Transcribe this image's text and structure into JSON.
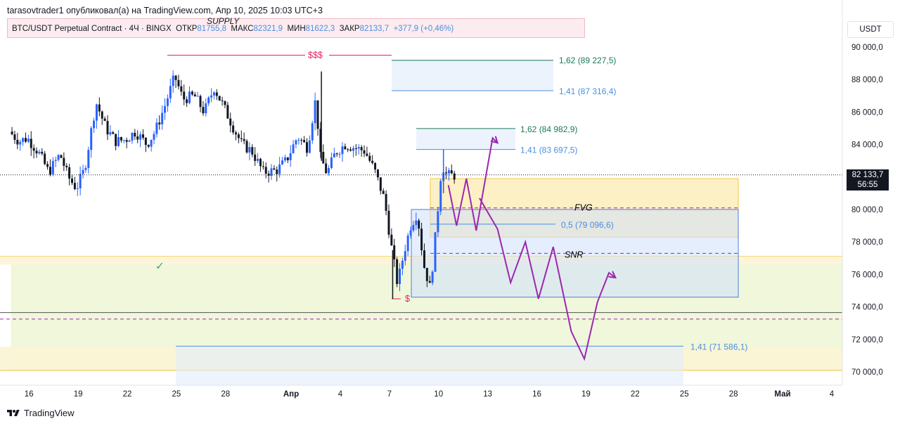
{
  "header": {
    "publisher_line": "tarasovtrader1 опубликовал(а) на TradingView.com, Апр 10, 2025 10:03 UTC+3"
  },
  "symbol": {
    "name": "BTC/USDT Perpetual Contract · 4Ч · BINGX",
    "open_label": "ОТКР",
    "open": "81755,8",
    "high_label": "МАКС",
    "high": "82321,9",
    "low_label": "МИН",
    "low": "81622,3",
    "close_label": "ЗАКР",
    "close": "82133,7",
    "change": "+377,9 (+0,46%)"
  },
  "currency": "USDT",
  "price_box": {
    "price": "82 133,7",
    "countdown": "56:55"
  },
  "footer": {
    "brand": "TradingView"
  },
  "colors": {
    "up": "#2962ff",
    "down": "#131722",
    "purple": "#9c27b0",
    "red_line": "#e91e63",
    "green_fib": "#1b7a5a",
    "blue_fib": "#4a8fe0"
  },
  "chart_data": {
    "type": "candlestick",
    "y_axis_labels": [
      "90 000,0",
      "88 000,0",
      "86 000,0",
      "84 000,0",
      "82 000,0",
      "80 000,0",
      "78 000,0",
      "76 000,0",
      "74 000,0",
      "72 000,0",
      "70 000,0"
    ],
    "y_axis_values": [
      90000,
      88000,
      86000,
      84000,
      82000,
      80000,
      78000,
      76000,
      74000,
      72000,
      70000
    ],
    "ylim": [
      69200,
      91000
    ],
    "x_axis_labels": [
      "16",
      "19",
      "22",
      "25",
      "28",
      "Апр",
      "4",
      "7",
      "10",
      "13",
      "16",
      "19",
      "22",
      "25",
      "28",
      "Май",
      "4"
    ],
    "x_axis_days": [
      -16,
      -13,
      -10,
      -7,
      -4,
      0,
      3,
      6,
      9,
      12,
      15,
      18,
      21,
      24,
      27,
      30,
      33
    ],
    "xlim_days": [
      -17.1,
      34
    ],
    "day_axis_note": "days relative to 1 Apr 2025",
    "price_path": [
      [
        -17.1,
        84800
      ],
      [
        -16.5,
        84200
      ],
      [
        -16,
        84400
      ],
      [
        -15.3,
        83500
      ],
      [
        -14.7,
        82300
      ],
      [
        -14,
        83400
      ],
      [
        -13.5,
        82000
      ],
      [
        -13,
        81300
      ],
      [
        -12.5,
        82500
      ],
      [
        -11.8,
        86600
      ],
      [
        -11.2,
        85000
      ],
      [
        -10.6,
        84200
      ],
      [
        -10,
        84300
      ],
      [
        -9.4,
        84800
      ],
      [
        -8.7,
        84000
      ],
      [
        -8.2,
        84800
      ],
      [
        -7.6,
        86400
      ],
      [
        -7.0,
        88200
      ],
      [
        -6.5,
        86800
      ],
      [
        -5.8,
        87000
      ],
      [
        -5.2,
        86000
      ],
      [
        -4.6,
        87500
      ],
      [
        -4.0,
        86300
      ],
      [
        -3.4,
        85000
      ],
      [
        -2.9,
        84000
      ],
      [
        -2.3,
        83600
      ],
      [
        -1.6,
        82300
      ],
      [
        -0.8,
        82400
      ],
      [
        -0.2,
        83000
      ],
      [
        0.5,
        84500
      ],
      [
        1.1,
        83800
      ],
      [
        1.6,
        86800
      ],
      [
        1.9,
        83200
      ],
      [
        2.3,
        82200
      ],
      [
        2.8,
        83500
      ],
      [
        3.4,
        84000
      ],
      [
        4.0,
        83800
      ],
      [
        4.6,
        83600
      ],
      [
        5.2,
        82400
      ],
      [
        5.8,
        80600
      ],
      [
        6.3,
        77200
      ],
      [
        6.6,
        75400
      ],
      [
        7.0,
        77400
      ],
      [
        7.4,
        79000
      ],
      [
        7.8,
        79800
      ],
      [
        8.2,
        76600
      ],
      [
        8.6,
        75100
      ],
      [
        9.0,
        79300
      ],
      [
        9.3,
        82800
      ],
      [
        9.6,
        82100
      ]
    ],
    "candle_range_days": [
      -17.1,
      9.9
    ],
    "levels": [
      {
        "label": "$$$",
        "price": 89500
      },
      {
        "label": "1,62 (89 227,5)",
        "price": 89227.5
      },
      {
        "label": "1,41 (87 316,4)",
        "price": 87316.4
      },
      {
        "label": "1,62 (84 982,9)",
        "price": 84982.9
      },
      {
        "label": "1,41 (83 697,5)",
        "price": 83697.5
      },
      {
        "label": "FVG",
        "price": 80100
      },
      {
        "label": "0,5 (79 096,6)",
        "price": 79096.6
      },
      {
        "label": "SNR",
        "price": 77300
      },
      {
        "label": "1,41 (71 586,1)",
        "price": 71586.1
      },
      {
        "label": "$",
        "price": 74500
      }
    ],
    "zones": [
      {
        "name": "yellow-box",
        "from_day": 9.6,
        "to_day": 27.9,
        "price_low": 78300,
        "price_high": 81900
      },
      {
        "name": "blue-box",
        "from_day": 8.5,
        "to_day": 27.9,
        "price_low": 74600,
        "price_high": 80000
      },
      {
        "name": "green-band",
        "from_day": -17.1,
        "to_day": 34,
        "price_low": 70100,
        "price_high": 76600
      }
    ],
    "projection_path": [
      [
        9.6,
        81500
      ],
      [
        10.1,
        79000
      ],
      [
        10.7,
        81900
      ],
      [
        11.3,
        78700
      ],
      [
        12.3,
        84400
      ],
      [
        12.6,
        84100
      ]
    ],
    "scenario_path": [
      [
        11.5,
        80700
      ],
      [
        12.6,
        78800
      ],
      [
        13.4,
        75500
      ],
      [
        14.3,
        78000
      ],
      [
        15.1,
        74500
      ],
      [
        16.0,
        77700
      ],
      [
        17.1,
        72500
      ],
      [
        17.9,
        70800
      ],
      [
        18.7,
        74300
      ],
      [
        19.4,
        76100
      ],
      [
        19.8,
        75800
      ]
    ]
  }
}
